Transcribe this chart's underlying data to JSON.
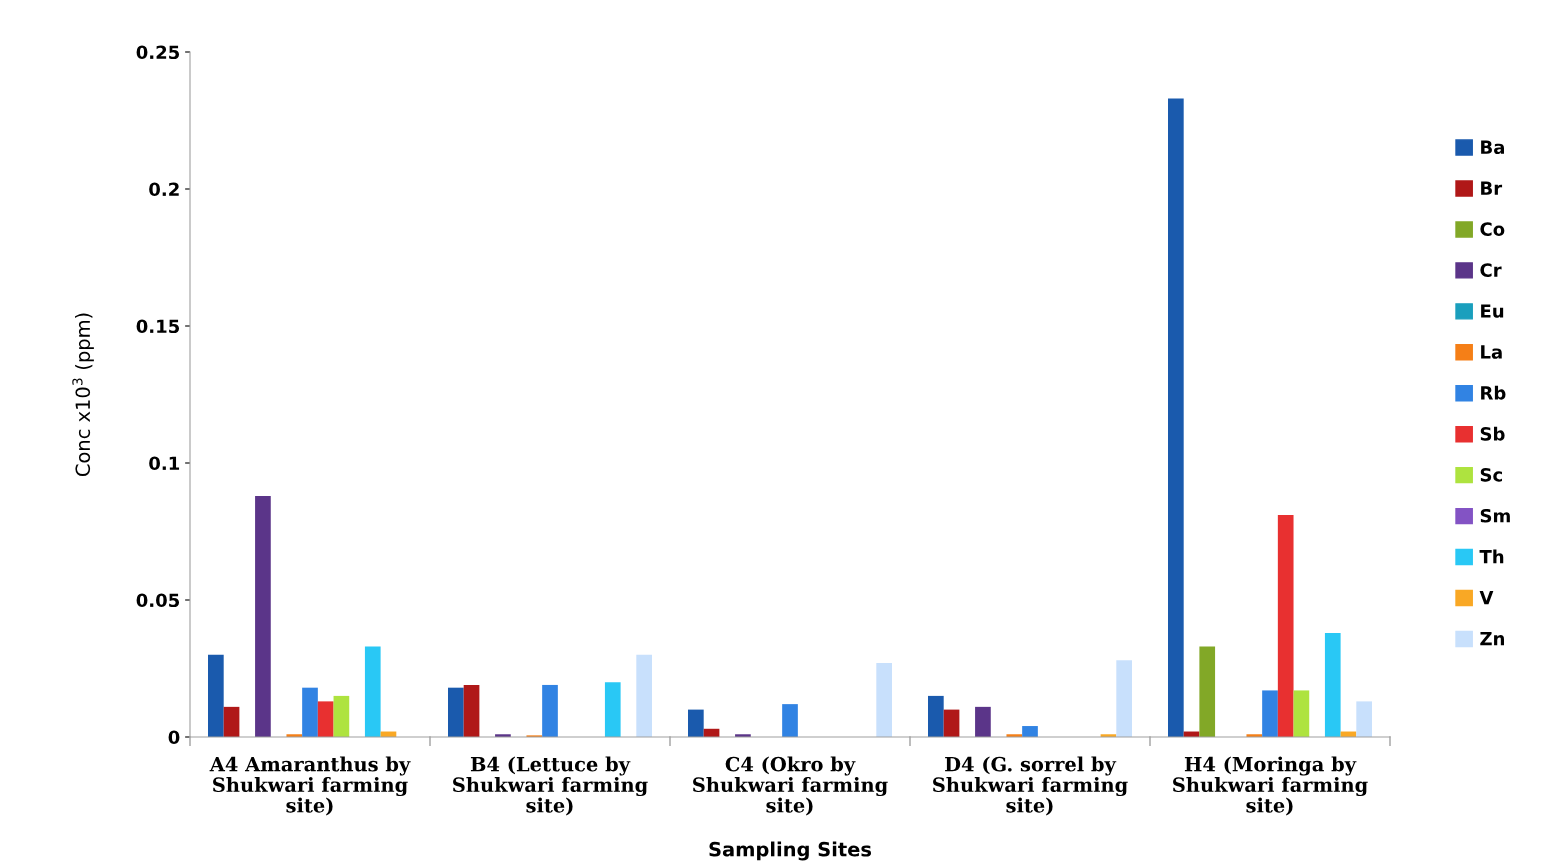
{
  "chart_data": {
    "type": "bar",
    "xlabel": "Sampling Sites",
    "ylabel": "Conc x10$^{3}$ (ppm)",
    "categories": [
      "A4 Amaranthus by\nShukwari farming\nsite)",
      "B4 (Lettuce by\nShukwari farming\nsite)",
      "C4 (Okro by\nShukwari farming\nsite)",
      "D4 (G. sorrel by\nShukwari farming\nsite)",
      "H4 (Moringa by\nShukwari farming\nsite)"
    ],
    "ylim": [
      0,
      0.25
    ],
    "yticks": [
      0,
      0.05,
      0.1,
      0.15,
      0.2,
      0.25
    ],
    "grid": false,
    "legend": "right",
    "series": [
      {
        "name": "Ba",
        "color": "#1a5aad",
        "values": [
          0.03,
          0.018,
          0.01,
          0.015,
          0.233
        ]
      },
      {
        "name": "Br",
        "color": "#b01818",
        "values": [
          0.011,
          0.019,
          0.003,
          0.01,
          0.002
        ]
      },
      {
        "name": "Co",
        "color": "#82a827",
        "values": [
          null,
          null,
          null,
          null,
          0.033
        ]
      },
      {
        "name": "Cr",
        "color": "#5b3589",
        "values": [
          0.088,
          0.001,
          0.001,
          0.011,
          null
        ]
      },
      {
        "name": "Eu",
        "color": "#1a9fbd",
        "values": [
          null,
          null,
          null,
          null,
          null
        ]
      },
      {
        "name": "La",
        "color": "#f57f17",
        "values": [
          0.001,
          0.0006,
          null,
          0.001,
          0.001
        ]
      },
      {
        "name": "Rb",
        "color": "#3183e3",
        "values": [
          0.018,
          0.019,
          0.012,
          0.004,
          0.017
        ]
      },
      {
        "name": "Sb",
        "color": "#e83030",
        "values": [
          0.013,
          null,
          null,
          null,
          0.081
        ]
      },
      {
        "name": "Sc",
        "color": "#aee33f",
        "values": [
          0.015,
          null,
          null,
          null,
          0.017
        ]
      },
      {
        "name": "Sm",
        "color": "#8353c4",
        "values": [
          null,
          null,
          null,
          null,
          null
        ]
      },
      {
        "name": "Th",
        "color": "#29c8f5",
        "values": [
          0.033,
          0.02,
          null,
          null,
          0.038
        ]
      },
      {
        "name": "V",
        "color": "#f9a825",
        "values": [
          0.002,
          null,
          null,
          0.001,
          0.002
        ]
      },
      {
        "name": "Zn",
        "color": "#c8e0fc",
        "values": [
          null,
          0.03,
          0.027,
          0.028,
          0.013
        ]
      }
    ]
  }
}
